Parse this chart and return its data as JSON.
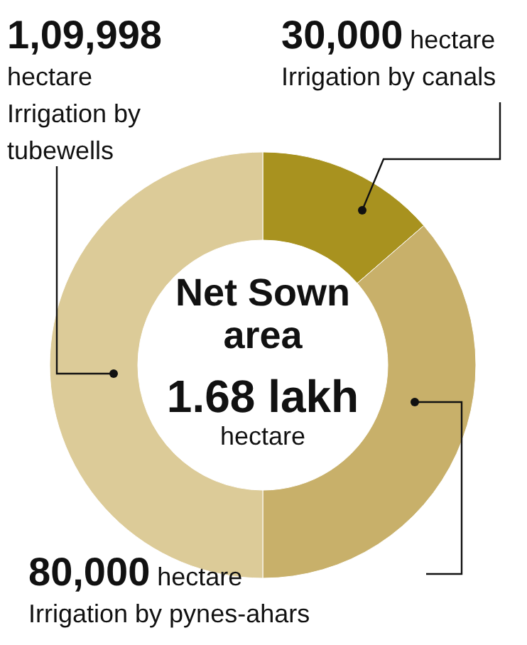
{
  "chart_data": {
    "type": "donut",
    "title": "Net Sown area",
    "annotations": [
      "1.68 lakh hectare"
    ],
    "categories": [
      "Irrigation by canals",
      "Irrigation by pynes-ahars",
      "Irrigation by tubewells"
    ],
    "values": [
      30000,
      80000,
      109998
    ],
    "colors": [
      "#a8921f",
      "#c8b06a",
      "#dccb98"
    ],
    "value_labels": [
      "30,000 hectare",
      "80,000 hectare",
      "1,09,998 hectare"
    ]
  }
}
